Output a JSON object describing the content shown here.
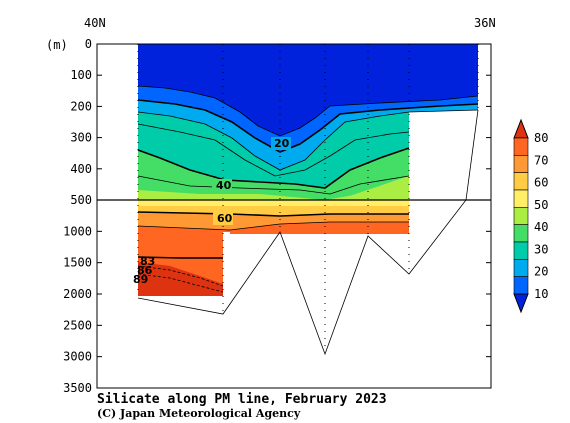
{
  "chart_data": {
    "type": "heatmap",
    "title": "Silicate along PM line, February 2023",
    "credit": "(C) Japan Meteorological Agency",
    "x_labels": {
      "left": "40N",
      "right": "36N"
    },
    "y_unit": "(m)",
    "y_ticks_upper": [
      0,
      100,
      200,
      300,
      400,
      500
    ],
    "y_ticks_lower": [
      1000,
      1500,
      2000,
      2500,
      3000,
      3500
    ],
    "ylim_upper": [
      0,
      500
    ],
    "ylim_lower": [
      500,
      3500
    ],
    "xlim": [
      40,
      36
    ],
    "colorbar": {
      "levels": [
        10,
        20,
        30,
        40,
        50,
        60,
        70,
        80
      ],
      "colors": [
        "#0022dd",
        "#0066ff",
        "#00aaee",
        "#00ccaa",
        "#44dd66",
        "#aaee44",
        "#ffee66",
        "#ffcc44",
        "#ff9933",
        "#ff6622",
        "#dd3311"
      ]
    },
    "contour_labels": [
      "20",
      "40",
      "60",
      "83",
      "86",
      "89"
    ]
  }
}
